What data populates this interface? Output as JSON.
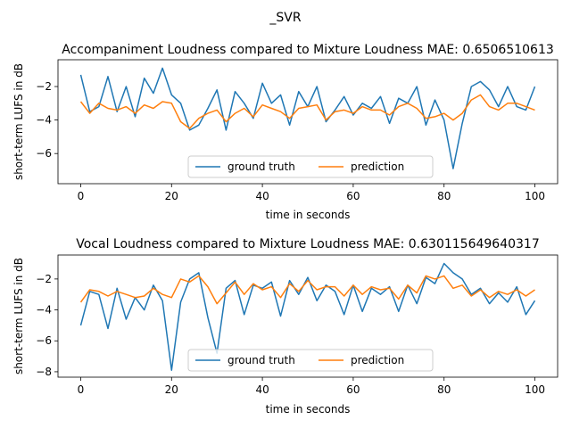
{
  "figure": {
    "suptitle": "_SVR"
  },
  "colors": {
    "ground_truth": "#1f77b4",
    "prediction": "#ff7f0e"
  },
  "chart_data": [
    {
      "type": "line",
      "title": "Accompaniment Loudness compared to Mixture Loudness  MAE: 0.6506510613",
      "xlabel": "time in seconds",
      "ylabel": "short-term LUFS in dB",
      "xlim": [
        -5,
        105
      ],
      "ylim": [
        -7.8,
        -0.4
      ],
      "xticks": [
        0,
        20,
        40,
        60,
        80,
        100
      ],
      "yticks": [
        -6,
        -4,
        -2
      ],
      "legend": {
        "placement": "lower-center",
        "entries": [
          "ground truth",
          "prediction"
        ]
      },
      "x": [
        0,
        2,
        4,
        6,
        8,
        10,
        12,
        14,
        16,
        18,
        20,
        22,
        24,
        26,
        28,
        30,
        32,
        34,
        36,
        38,
        40,
        42,
        44,
        46,
        48,
        50,
        52,
        54,
        56,
        58,
        60,
        62,
        64,
        66,
        68,
        70,
        72,
        74,
        76,
        78,
        80,
        82,
        84,
        86,
        88,
        90,
        92,
        94,
        96,
        98,
        100
      ],
      "series": [
        {
          "name": "ground truth",
          "values": [
            -1.3,
            -3.5,
            -3.2,
            -1.4,
            -3.5,
            -2.0,
            -3.8,
            -1.5,
            -2.4,
            -0.9,
            -2.5,
            -3.0,
            -4.6,
            -4.3,
            -3.3,
            -2.2,
            -4.6,
            -2.3,
            -3.0,
            -3.9,
            -1.8,
            -3.0,
            -2.5,
            -4.3,
            -2.3,
            -3.2,
            -2.0,
            -4.1,
            -3.4,
            -2.6,
            -3.7,
            -3.0,
            -3.3,
            -2.6,
            -4.2,
            -2.7,
            -3.0,
            -2.0,
            -4.3,
            -2.8,
            -4.0,
            -6.9,
            -4.2,
            -2.0,
            -1.7,
            -2.2,
            -3.2,
            -2.0,
            -3.2,
            -3.4,
            -2.0
          ]
        },
        {
          "name": "prediction",
          "values": [
            -2.9,
            -3.6,
            -3.0,
            -3.3,
            -3.4,
            -3.2,
            -3.6,
            -3.1,
            -3.3,
            -2.9,
            -3.0,
            -4.1,
            -4.5,
            -3.9,
            -3.6,
            -3.4,
            -4.1,
            -3.6,
            -3.3,
            -3.8,
            -3.1,
            -3.3,
            -3.5,
            -3.9,
            -3.3,
            -3.2,
            -3.1,
            -4.0,
            -3.5,
            -3.4,
            -3.6,
            -3.2,
            -3.4,
            -3.4,
            -3.7,
            -3.2,
            -3.0,
            -3.3,
            -3.9,
            -3.8,
            -3.6,
            -4.0,
            -3.6,
            -2.8,
            -2.5,
            -3.2,
            -3.4,
            -3.0,
            -3.0,
            -3.2,
            -3.4
          ]
        }
      ]
    },
    {
      "type": "line",
      "title": "Vocal Loudness compared to Mixture Loudness MAE: 0.630115649640317",
      "xlabel": "time in seconds",
      "ylabel": "short-term LUFS in dB",
      "xlim": [
        -5,
        105
      ],
      "ylim": [
        -8.35,
        -0.45
      ],
      "xticks": [
        0,
        20,
        40,
        60,
        80,
        100
      ],
      "yticks": [
        -8,
        -6,
        -4,
        -2
      ],
      "legend": {
        "placement": "lower-center",
        "entries": [
          "ground truth",
          "prediction"
        ]
      },
      "x": [
        0,
        2,
        4,
        6,
        8,
        10,
        12,
        14,
        16,
        18,
        20,
        22,
        24,
        26,
        28,
        30,
        32,
        34,
        36,
        38,
        40,
        42,
        44,
        46,
        48,
        50,
        52,
        54,
        56,
        58,
        60,
        62,
        64,
        66,
        68,
        70,
        72,
        74,
        76,
        78,
        80,
        82,
        84,
        86,
        88,
        90,
        92,
        94,
        96,
        98,
        100
      ],
      "series": [
        {
          "name": "ground truth",
          "values": [
            -5.0,
            -2.8,
            -3.0,
            -5.2,
            -2.6,
            -4.6,
            -3.2,
            -4.0,
            -2.4,
            -3.4,
            -7.9,
            -3.5,
            -2.0,
            -1.6,
            -4.5,
            -6.8,
            -2.6,
            -2.1,
            -4.3,
            -2.4,
            -2.6,
            -2.2,
            -4.4,
            -2.1,
            -3.0,
            -1.9,
            -3.4,
            -2.4,
            -2.8,
            -4.3,
            -2.4,
            -4.1,
            -2.6,
            -3.0,
            -2.5,
            -4.1,
            -2.4,
            -3.6,
            -1.9,
            -2.3,
            -1.0,
            -1.6,
            -2.0,
            -3.0,
            -2.6,
            -3.6,
            -2.9,
            -3.5,
            -2.5,
            -4.3,
            -3.4
          ]
        },
        {
          "name": "prediction",
          "values": [
            -3.5,
            -2.7,
            -2.8,
            -3.1,
            -2.8,
            -3.0,
            -3.2,
            -3.1,
            -2.6,
            -3.0,
            -3.2,
            -2.0,
            -2.2,
            -1.8,
            -2.5,
            -3.6,
            -2.9,
            -2.2,
            -3.0,
            -2.3,
            -2.7,
            -2.5,
            -3.2,
            -2.3,
            -2.8,
            -2.1,
            -2.7,
            -2.5,
            -2.5,
            -3.1,
            -2.4,
            -3.0,
            -2.5,
            -2.7,
            -2.6,
            -3.3,
            -2.4,
            -2.9,
            -1.8,
            -2.0,
            -1.8,
            -2.6,
            -2.4,
            -3.1,
            -2.7,
            -3.2,
            -2.8,
            -3.0,
            -2.7,
            -3.1,
            -2.7
          ]
        }
      ]
    }
  ]
}
